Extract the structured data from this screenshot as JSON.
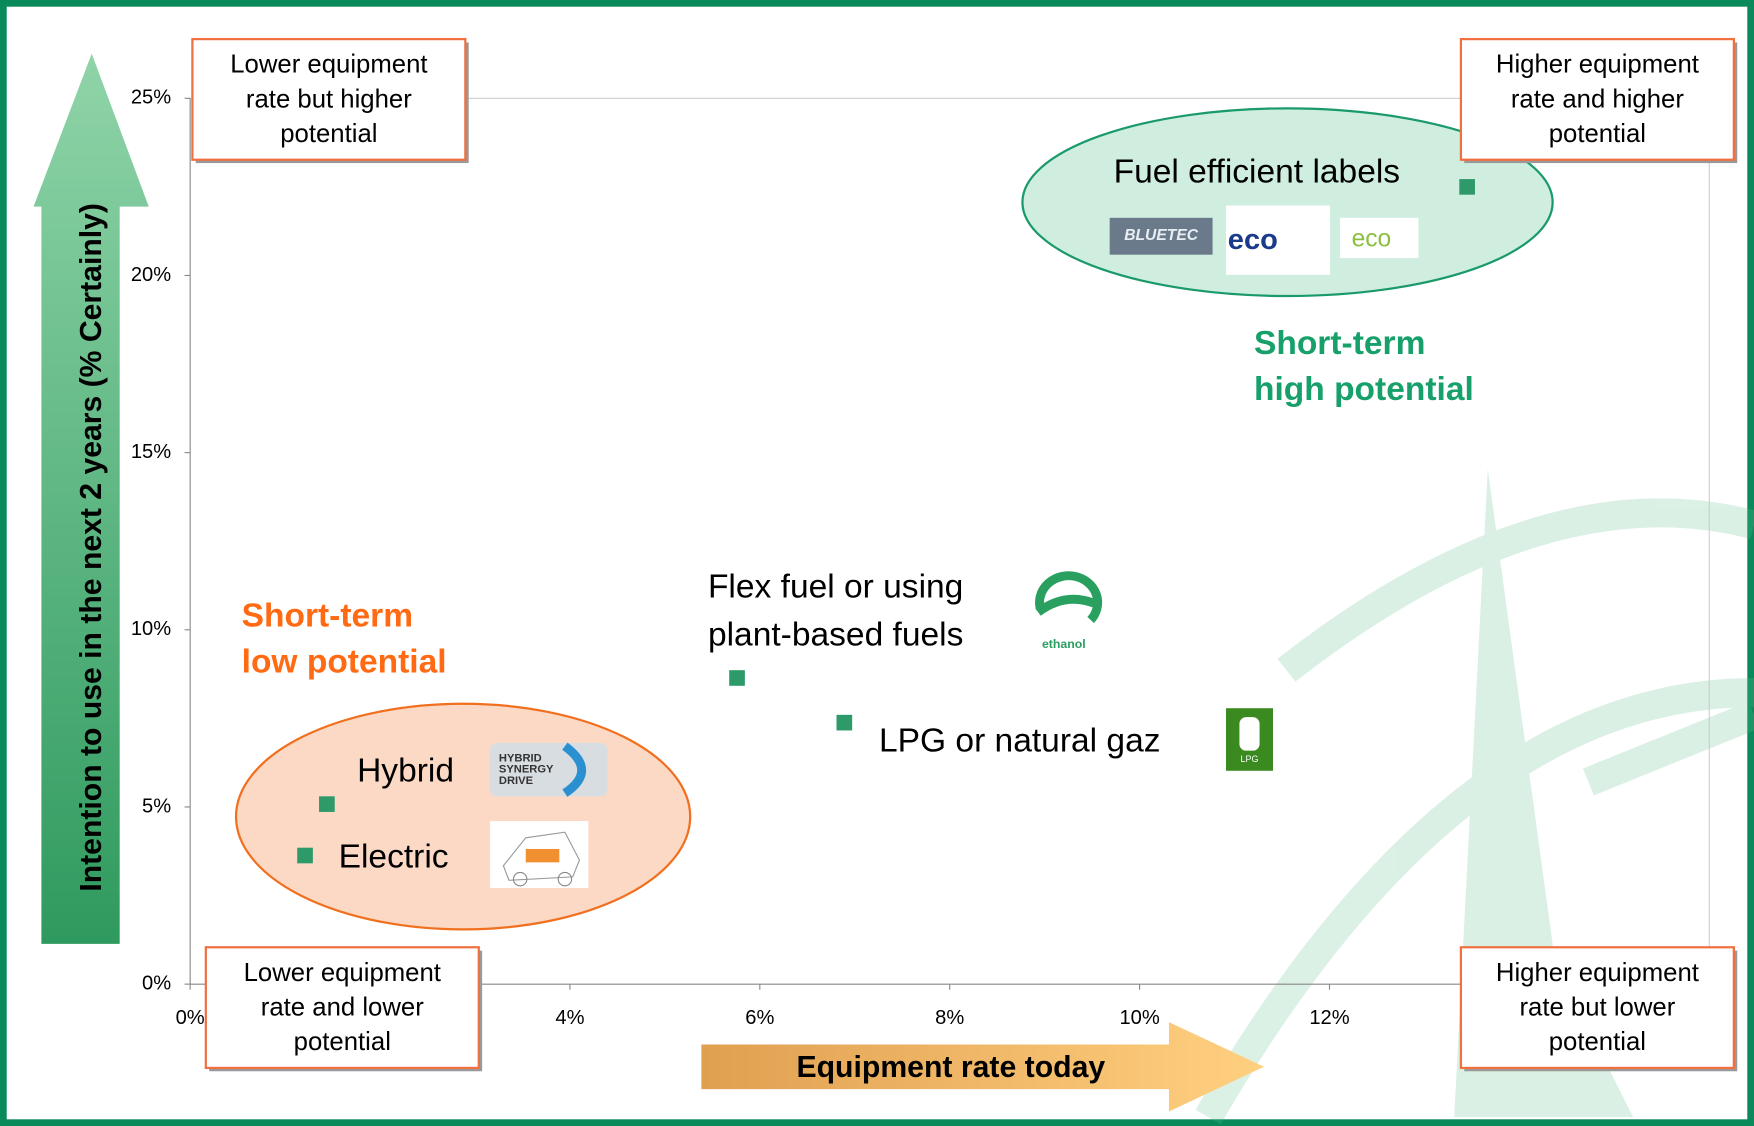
{
  "chart_data": {
    "type": "scatter",
    "xlabel": "Equipment rate today",
    "ylabel": "Intention to use in the next 2 years (% Certainly)",
    "x": [
      13.45,
      5.76,
      6.89,
      1.44,
      1.21
    ],
    "values": [
      22.5,
      8.64,
      7.38,
      5.08,
      3.63
    ],
    "point_labels": [
      [
        "Fuel efficient labels"
      ],
      [
        "Flex fuel or using",
        "plant-based fuels"
      ],
      [
        "LPG or natural gaz"
      ],
      [
        "Hybrid"
      ],
      [
        "Electric"
      ]
    ],
    "color": "#2e9a6a",
    "xlim": [
      0,
      16
    ],
    "ylim": [
      0,
      25
    ],
    "xticks": [
      {
        "value": 0,
        "label": "0%"
      },
      {
        "value": 4,
        "label": "4%"
      },
      {
        "value": 6,
        "label": "6%"
      },
      {
        "value": 8,
        "label": "8%"
      },
      {
        "value": 10,
        "label": "10%"
      },
      {
        "value": 12,
        "label": "12%"
      }
    ],
    "yticks": [
      {
        "value": 0,
        "label": "0%"
      },
      {
        "value": 5,
        "label": "5%"
      },
      {
        "value": 10,
        "label": "10%"
      },
      {
        "value": 15,
        "label": "15%"
      },
      {
        "value": 20,
        "label": "20%"
      },
      {
        "value": 25,
        "label": "25%"
      }
    ],
    "corner_boxes": {
      "top_left": [
        "Lower equipment",
        "rate but higher",
        "potential"
      ],
      "top_right": [
        "Higher equipment",
        "rate and higher",
        "potential"
      ],
      "bottom_left": [
        "Lower equipment",
        "rate and lower",
        "potential"
      ],
      "bottom_right": [
        "Higher equipment",
        "rate but lower",
        "potential"
      ]
    },
    "regions": {
      "high": [
        "Short-term",
        "high potential"
      ],
      "low": [
        "Short-term",
        "low potential"
      ]
    },
    "logos": {
      "bluetec": "BLUETEC",
      "ecomotive": "eco",
      "eco2": "eco",
      "hybrid": [
        "HYBRID",
        "SYNERGY",
        "DRIVE"
      ],
      "ethanol": "ethanol",
      "lpg": "LPG"
    }
  }
}
